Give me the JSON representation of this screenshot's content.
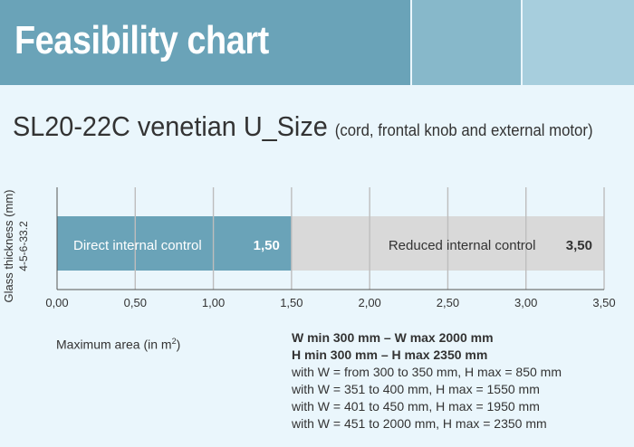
{
  "header": {
    "title": "Feasibility chart"
  },
  "subtitle": {
    "main": "SL20-22C venetian U_Size",
    "note": "(cord, frontal knob and external motor)"
  },
  "y_label": {
    "line1": "Glass thickness (mm)",
    "line2": "4-5-6-33.2"
  },
  "x_label": {
    "text": "Maximum area (in m",
    "sup": "2",
    "close": ")"
  },
  "constraints": {
    "bold": [
      "W min 300 mm – W max 2000 mm",
      "H min 300 mm – H max 2350 mm"
    ],
    "lines": [
      "with W = from 300 to 350 mm, H max = 850 mm",
      "with W = 351 to 400 mm, H max = 1550 mm",
      "with W = 401 to 450 mm, H max = 1950 mm",
      "with W = 451 to 2000 mm, H max = 2350 mm"
    ]
  },
  "colors": {
    "header": "#6aa3b8",
    "direct": "#6aa3b8",
    "reduced": "#d9d9d9",
    "background": "#eaf6fc"
  },
  "chart_data": {
    "type": "bar",
    "orientation": "horizontal",
    "stacked": true,
    "xlim": [
      0,
      3.5
    ],
    "x_ticks": [
      "0,00",
      "0,50",
      "1,00",
      "1,50",
      "2,00",
      "2,50",
      "3,00",
      "3,50"
    ],
    "xlabel": "Maximum area (in m2)",
    "ylabel": "Glass thickness (mm)",
    "categories": [
      "4-5-6-33.2"
    ],
    "grid": true,
    "series": [
      {
        "name": "Direct internal control",
        "from": 0,
        "to": 1.5,
        "value_label": "1,50",
        "color": "#6aa3b8"
      },
      {
        "name": "Reduced internal control",
        "from": 1.5,
        "to": 3.5,
        "value_label": "3,50",
        "color": "#d9d9d9"
      }
    ]
  }
}
